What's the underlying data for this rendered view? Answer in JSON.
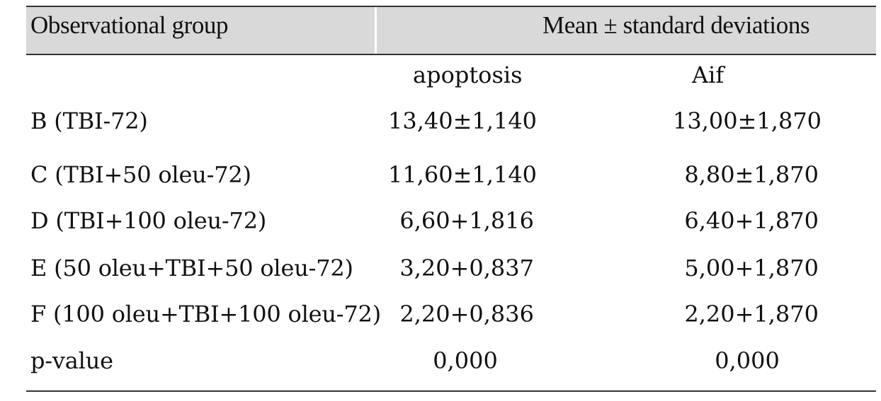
{
  "table": {
    "header": {
      "left": "Observational group",
      "right": "Mean ± standard deviations"
    },
    "subheaders": {
      "apoptosis": "apoptosis",
      "aif": "Aif"
    },
    "rows": [
      {
        "group": "B (TBI-72)",
        "apoptosis": "13,40±1,140",
        "aif": "13,00±1,870"
      },
      {
        "group": "C (TBI+50 oleu-72)",
        "apoptosis": "11,60±1,140",
        "aif": "8,80±1,870"
      },
      {
        "group": "D (TBI+100 oleu-72)",
        "apoptosis": "6,60+1,816",
        "aif": "6,40+1,870"
      },
      {
        "group": "E (50 oleu+TBI+50 oleu-72)",
        "apoptosis": "3,20+0,837",
        "aif": "5,00+1,870"
      },
      {
        "group": "F (100 oleu+TBI+100 oleu-72)",
        "apoptosis": "2,20+0,836",
        "aif": "2,20+1,870"
      },
      {
        "group": "p-value",
        "apoptosis": "0,000",
        "aif": "0,000"
      }
    ]
  }
}
